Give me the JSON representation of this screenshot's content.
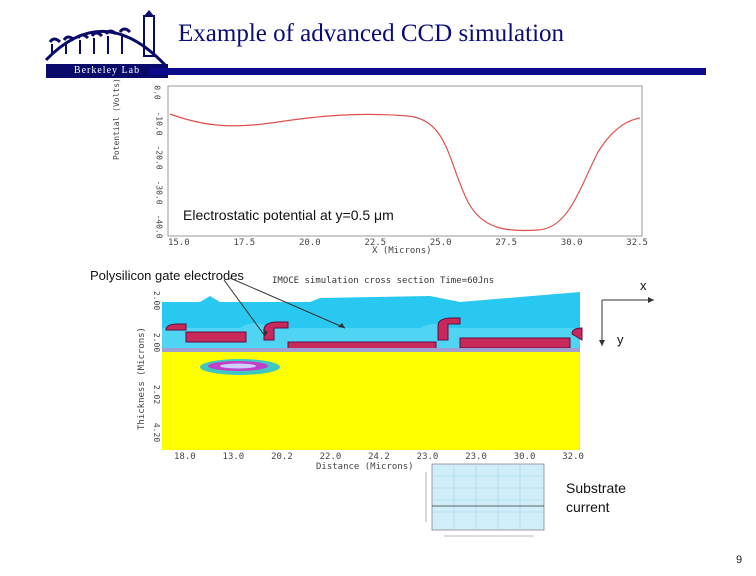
{
  "header": {
    "title": "Example of advanced CCD simulation",
    "logo_text": "Berkeley Lab"
  },
  "potential_plot": {
    "annotation": "Electrostatic potential at y=0.5 μm",
    "ylabel": "Potential (Volts)",
    "xlabel": "X (Microns)",
    "y_ticks": [
      "0.0",
      "-10.0",
      "-20.0",
      "-30.0",
      "-40.0"
    ],
    "x_ticks": [
      "15.0",
      "17.5",
      "20.0",
      "22.5",
      "25.0",
      "27.5",
      "30.0",
      "32.5"
    ],
    "line_color": "#e05050"
  },
  "cross_section": {
    "callout": "Polysilicon gate electrodes",
    "sim_title": "IMOCE simulation cross section Time=60Jns",
    "ylabel": "Thickness (Microns)",
    "xlabel": "Distance (Microns)",
    "y_ticks": [
      "2.00",
      "2.00",
      "2.02",
      "4.20"
    ],
    "x_ticks": [
      "18.0",
      "13.0",
      "20.2",
      "22.0",
      "24.2",
      "23.0",
      "23.0",
      "30.0",
      "32.0"
    ],
    "axis_x_label": "x",
    "axis_y_label": "y",
    "colors": {
      "oxide": "#29c8f0",
      "substrate": "#ffff00",
      "gate": "#c8285a",
      "charge": "#c040c8"
    }
  },
  "substrate_inset": {
    "label_line1": "Substrate",
    "label_line2": "current"
  },
  "page_number": "9"
}
